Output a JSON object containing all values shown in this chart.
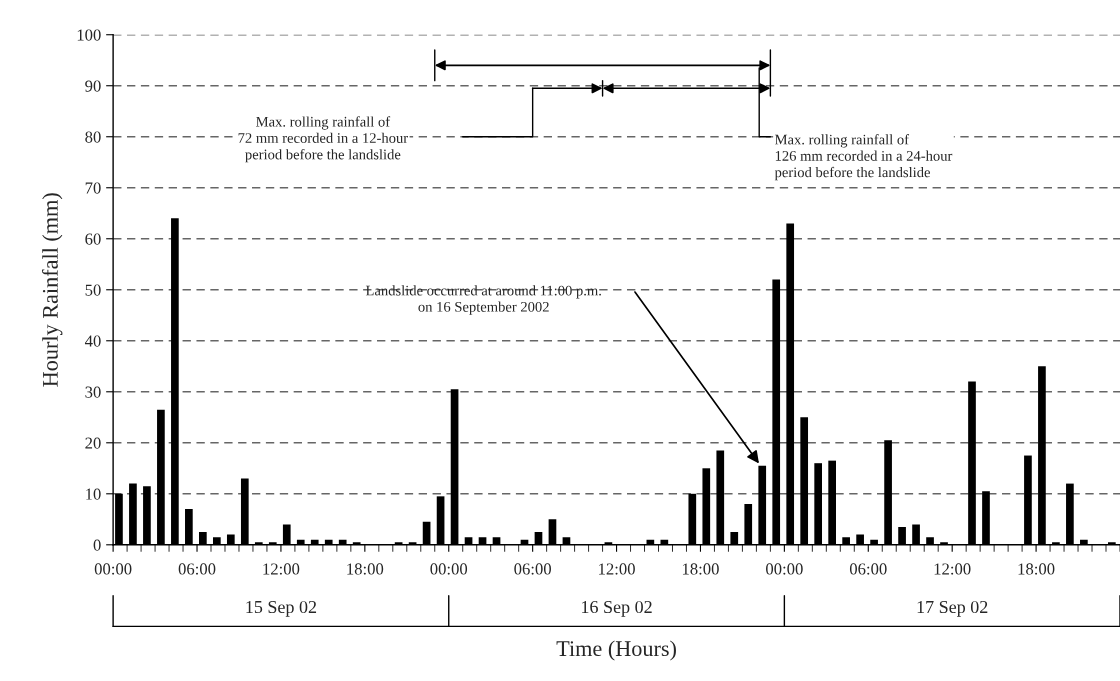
{
  "chart_data": {
    "type": "bar",
    "xlabel": "Time (Hours)",
    "ylabel": "Hourly Rainfall (mm)",
    "color": "#000000",
    "x": [
      "2002-09-15T00:25",
      "2002-09-15T01:25",
      "2002-09-15T02:25",
      "2002-09-15T03:25",
      "2002-09-15T04:25",
      "2002-09-15T05:25",
      "2002-09-15T06:25",
      "2002-09-15T07:25",
      "2002-09-15T08:25",
      "2002-09-15T09:25",
      "2002-09-15T10:25",
      "2002-09-15T11:25",
      "2002-09-15T12:25",
      "2002-09-15T13:25",
      "2002-09-15T14:25",
      "2002-09-15T15:25",
      "2002-09-15T16:25",
      "2002-09-15T17:25",
      "2002-09-15T18:25",
      "2002-09-15T19:25",
      "2002-09-15T20:25",
      "2002-09-15T21:25",
      "2002-09-15T22:25",
      "2002-09-15T23:25",
      "2002-09-16T00:25",
      "2002-09-16T01:25",
      "2002-09-16T02:25",
      "2002-09-16T03:25",
      "2002-09-16T04:25",
      "2002-09-16T05:25",
      "2002-09-16T06:25",
      "2002-09-16T07:25",
      "2002-09-16T08:25",
      "2002-09-16T09:25",
      "2002-09-16T10:25",
      "2002-09-16T11:25",
      "2002-09-16T12:25",
      "2002-09-16T13:25",
      "2002-09-16T14:25",
      "2002-09-16T15:25",
      "2002-09-16T16:25",
      "2002-09-16T17:25",
      "2002-09-16T18:25",
      "2002-09-16T19:25",
      "2002-09-16T20:25",
      "2002-09-16T21:25",
      "2002-09-16T22:25",
      "2002-09-16T23:25",
      "2002-09-17T00:25",
      "2002-09-17T01:25",
      "2002-09-17T02:25",
      "2002-09-17T03:25",
      "2002-09-17T04:25",
      "2002-09-17T05:25",
      "2002-09-17T06:25",
      "2002-09-17T07:25",
      "2002-09-17T08:25",
      "2002-09-17T09:25",
      "2002-09-17T10:25",
      "2002-09-17T11:25",
      "2002-09-17T12:25",
      "2002-09-17T13:25",
      "2002-09-17T14:25",
      "2002-09-17T15:25",
      "2002-09-17T16:25",
      "2002-09-17T17:25",
      "2002-09-17T18:25",
      "2002-09-17T19:25",
      "2002-09-17T20:25",
      "2002-09-17T21:25",
      "2002-09-17T22:25",
      "2002-09-17T23:25"
    ],
    "values": [
      10,
      12,
      11.5,
      26.5,
      64,
      7,
      2.5,
      1.5,
      2,
      13,
      0.5,
      0.5,
      4,
      1,
      1,
      1,
      1,
      0.5,
      0,
      0,
      0.5,
      0.5,
      4.5,
      9.5,
      30.5,
      1.5,
      1.5,
      1.5,
      0,
      1,
      2.5,
      5,
      1.5,
      0,
      0,
      0.5,
      0,
      0,
      1,
      1,
      0,
      10,
      15,
      18.5,
      2.5,
      8,
      15.5,
      52,
      63,
      25,
      16,
      16.5,
      1.5,
      2,
      1,
      20.5,
      3.5,
      4,
      1.5,
      0.5,
      0,
      32,
      10.5,
      0,
      0,
      17.5,
      35,
      0.5,
      12,
      1,
      0,
      0.5
    ],
    "xlim": [
      "2002-09-15T00:00",
      "2002-09-18T00:00"
    ],
    "xticks": [
      {
        "value": "2002-09-15T00:00",
        "label": "00:00"
      },
      {
        "value": "2002-09-15T06:00",
        "label": "06:00"
      },
      {
        "value": "2002-09-15T12:00",
        "label": "12:00"
      },
      {
        "value": "2002-09-15T18:00",
        "label": "18:00"
      },
      {
        "value": "2002-09-16T00:00",
        "label": "00:00"
      },
      {
        "value": "2002-09-16T06:00",
        "label": "06:00"
      },
      {
        "value": "2002-09-16T12:00",
        "label": "12:00"
      },
      {
        "value": "2002-09-16T18:00",
        "label": "18:00"
      },
      {
        "value": "2002-09-17T00:00",
        "label": "00:00"
      },
      {
        "value": "2002-09-17T06:00",
        "label": "06:00"
      },
      {
        "value": "2002-09-17T12:00",
        "label": "12:00"
      },
      {
        "value": "2002-09-17T18:00",
        "label": "18:00"
      }
    ],
    "x2lim": [
      "2002-09-15T00:00",
      "2002-09-18T00:00"
    ],
    "x2ticks": [
      {
        "value": "2002-09-15T12:00",
        "label": "15 Sep 02"
      },
      {
        "value": "2002-09-16T12:00",
        "label": "16 Sep 02"
      },
      {
        "value": "2002-09-17T12:00",
        "label": "17 Sep 02"
      }
    ],
    "ylim": [
      0,
      100
    ],
    "yticks": [
      0,
      10,
      20,
      30,
      40,
      50,
      60,
      70,
      80,
      90,
      100
    ],
    "grid": "y",
    "annotations": [
      "Landslide occurred at around 11:00 p.m.\non 16 September 2002",
      "Max. rolling rainfall of\n72 mm recorded in a 12-hour\nperiod before the landslide",
      "Max. rolling rainfall of\n126 mm recorded in a 24-hour\nperiod before the landslide"
    ]
  }
}
